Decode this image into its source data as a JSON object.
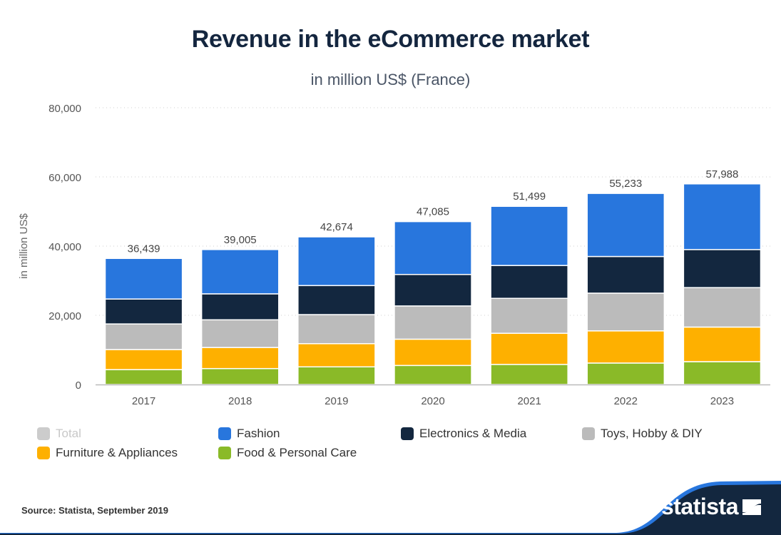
{
  "header": {
    "title": "Revenue in the eCommerce market",
    "subtitle": "in million US$ (France)"
  },
  "chart_data": {
    "type": "bar",
    "stacked": true,
    "title": "Revenue in the eCommerce market",
    "subtitle": "in million US$ (France)",
    "xlabel": "",
    "ylabel": "in million US$",
    "ylim": [
      0,
      80000
    ],
    "yticks": [
      0,
      20000,
      40000,
      60000,
      80000
    ],
    "ytick_labels": [
      "0",
      "20,000",
      "40,000",
      "60,000",
      "80,000"
    ],
    "grid": true,
    "legend_position": "bottom",
    "categories": [
      "2017",
      "2018",
      "2019",
      "2020",
      "2021",
      "2022",
      "2023"
    ],
    "totals": [
      36439,
      39005,
      42674,
      47085,
      51499,
      55233,
      57988
    ],
    "total_labels": [
      "36,439",
      "39,005",
      "42,674",
      "47,085",
      "51,499",
      "55,233",
      "57,988"
    ],
    "series": [
      {
        "name": "Food & Personal Care",
        "color": "#8aba28",
        "values": [
          4300,
          4600,
          5100,
          5500,
          5800,
          6200,
          6600
        ]
      },
      {
        "name": "Furniture & Appliances",
        "color": "#feb000",
        "values": [
          5800,
          6100,
          6700,
          7600,
          9000,
          9300,
          10000
        ]
      },
      {
        "name": "Toys, Hobby & DIY",
        "color": "#bbbbbb",
        "values": [
          7400,
          8000,
          8400,
          9600,
          10100,
          10900,
          11400
        ]
      },
      {
        "name": "Electronics & Media",
        "color": "#13273f",
        "values": [
          7200,
          7500,
          8400,
          9100,
          9500,
          10600,
          11000
        ]
      },
      {
        "name": "Fashion",
        "color": "#2876dd",
        "values": [
          11739,
          12805,
          14074,
          15285,
          17099,
          18233,
          18988
        ]
      }
    ]
  },
  "legend": {
    "items": [
      {
        "label": "Total",
        "color": "#cccccc",
        "muted": true
      },
      {
        "label": "Fashion",
        "color": "#2876dd"
      },
      {
        "label": "Electronics & Media",
        "color": "#13273f"
      },
      {
        "label": "Toys, Hobby & DIY",
        "color": "#bbbbbb"
      },
      {
        "label": "Furniture & Appliances",
        "color": "#feb000"
      },
      {
        "label": "Food & Personal Care",
        "color": "#8aba28"
      }
    ]
  },
  "footer": {
    "source": "Source: Statista, September 2019",
    "brand": "statista"
  }
}
